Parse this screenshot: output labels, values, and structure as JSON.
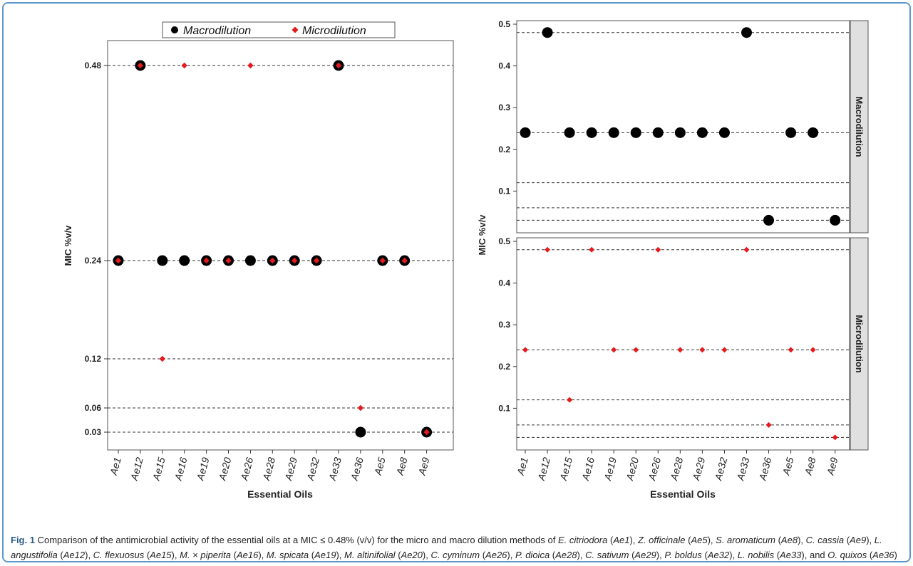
{
  "figure": {
    "legend": {
      "items": [
        {
          "label": "Macrodilution",
          "color": "#000000",
          "marker": "circle"
        },
        {
          "label": "Microdilution",
          "color": "#e41a1c",
          "marker": "diamond"
        }
      ]
    },
    "caption": {
      "label": "Fig. 1",
      "text": "Comparison of the antimicrobial activity of the essential oils at a MIC ≤ 0.48% (v/v) for the micro and macro dilution methods of E. citriodora (Ae1), Z. officinale (Ae5), S. aromaticum (Ae8), C. cassia (Ae9), L. angustifolia (Ae12), C. flexuosus (Ae15), M. × piperita (Ae16), M. spicata (Ae19), M. altinifolial (Ae20), C. cyminum (Ae26), P. dioica (Ae28), C. sativum (Ae29), P. boldus (Ae32), L. nobilis (Ae33), and O. quixos (Ae36)"
    }
  },
  "chart_data": [
    {
      "type": "scatter",
      "panel": "left",
      "xlabel": "Essential Oils",
      "ylabel": "MIC %v/v",
      "scale": "categorical-levels",
      "categories": [
        "Ae1",
        "Ae12",
        "Ae15",
        "Ae16",
        "Ae19",
        "Ae20",
        "Ae26",
        "Ae28",
        "Ae29",
        "Ae32",
        "Ae33",
        "Ae36",
        "Ae5",
        "Ae8",
        "Ae9"
      ],
      "yticks": [
        "0.03",
        "0.06",
        "0.12",
        "0.24",
        "0.48"
      ],
      "gridlines": "horizontal-dashed",
      "series": [
        {
          "name": "Macrodilution",
          "color": "#000000",
          "marker": "circle",
          "values": [
            0.24,
            0.48,
            0.24,
            0.24,
            0.24,
            0.24,
            0.24,
            0.24,
            0.24,
            0.24,
            0.48,
            0.03,
            0.24,
            0.24,
            0.03
          ]
        },
        {
          "name": "Microdilution",
          "color": "#e41a1c",
          "marker": "diamond",
          "values": [
            0.24,
            0.48,
            0.12,
            0.48,
            0.24,
            0.24,
            0.48,
            0.24,
            0.24,
            0.24,
            0.48,
            0.06,
            0.24,
            0.24,
            0.03
          ]
        }
      ],
      "legend": "top"
    },
    {
      "type": "scatter",
      "panel": "right-top",
      "facet": "Macrodilution",
      "xlabel": "Essential Oils",
      "ylabel": "MIC %v/v",
      "categories": [
        "Ae1",
        "Ae12",
        "Ae15",
        "Ae16",
        "Ae19",
        "Ae20",
        "Ae26",
        "Ae28",
        "Ae29",
        "Ae32",
        "Ae33",
        "Ae36",
        "Ae5",
        "Ae8",
        "Ae9"
      ],
      "yticks": [
        "0.1",
        "0.2",
        "0.3",
        "0.4",
        "0.5"
      ],
      "ylim": [
        0.0,
        0.5
      ],
      "hlines": [
        0.03,
        0.06,
        0.12,
        0.24,
        0.48
      ],
      "series": [
        {
          "name": "Macrodilution",
          "color": "#000000",
          "marker": "circle",
          "values": [
            0.24,
            0.48,
            0.24,
            0.24,
            0.24,
            0.24,
            0.24,
            0.24,
            0.24,
            0.24,
            0.48,
            0.03,
            0.24,
            0.24,
            0.03
          ]
        }
      ]
    },
    {
      "type": "scatter",
      "panel": "right-bottom",
      "facet": "Microdilution",
      "xlabel": "Essential Oils",
      "ylabel": "MIC %v/v",
      "categories": [
        "Ae1",
        "Ae12",
        "Ae15",
        "Ae16",
        "Ae19",
        "Ae20",
        "Ae26",
        "Ae28",
        "Ae29",
        "Ae32",
        "Ae33",
        "Ae36",
        "Ae5",
        "Ae8",
        "Ae9"
      ],
      "yticks": [
        "0.1",
        "0.2",
        "0.3",
        "0.4",
        "0.5"
      ],
      "ylim": [
        0.0,
        0.5
      ],
      "hlines": [
        0.03,
        0.06,
        0.12,
        0.24,
        0.48
      ],
      "series": [
        {
          "name": "Microdilution",
          "color": "#e41a1c",
          "marker": "diamond",
          "values": [
            0.24,
            0.48,
            0.12,
            0.48,
            0.24,
            0.24,
            0.48,
            0.24,
            0.24,
            0.24,
            0.48,
            0.06,
            0.24,
            0.24,
            0.03
          ]
        }
      ]
    }
  ]
}
